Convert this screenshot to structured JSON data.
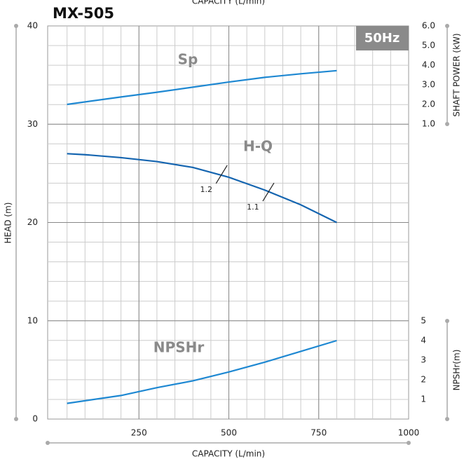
{
  "chart_data": {
    "type": "pump-curve",
    "title": "MX-505",
    "badge": "50Hz",
    "x_label_top": "CAPACITY (L/min)",
    "x_label": "CAPACITY (L/min)",
    "y_label": "HEAD (m)",
    "y2_label": "SHAFT POWER (kW)",
    "y3_label": "NPSHr(m)",
    "xlim": [
      0,
      1000
    ],
    "xticks": [
      250,
      500,
      750,
      1000
    ],
    "ylim": [
      0,
      40
    ],
    "yticks": [
      0,
      10,
      20,
      30,
      40
    ],
    "y2lim": [
      0,
      6
    ],
    "y2ticks": [
      {
        "value": 1,
        "label": "1.0"
      },
      {
        "value": 2,
        "label": "2.0"
      },
      {
        "value": 3,
        "label": "3.0"
      },
      {
        "value": 4,
        "label": "4.0"
      },
      {
        "value": 5,
        "label": "5.0"
      },
      {
        "value": 6,
        "label": "6.0"
      }
    ],
    "y3lim": [
      0,
      5
    ],
    "y3ticks": [
      1,
      2,
      3,
      4,
      5
    ],
    "grid": true,
    "x_minor_step": 50,
    "y_minor_step": 2,
    "series": [
      {
        "name": "H-Q",
        "color": "#1565b0",
        "axis": "y",
        "x": [
          50,
          100,
          200,
          300,
          400,
          500,
          600,
          700,
          800
        ],
        "values": [
          27.0,
          26.9,
          26.6,
          26.2,
          25.6,
          24.6,
          23.3,
          21.8,
          20.0
        ]
      },
      {
        "name": "Sp",
        "color": "#1e88d2",
        "axis": "y2",
        "x": [
          50,
          200,
          300,
          400,
          500,
          600,
          700,
          800
        ],
        "values": [
          2.0,
          2.38,
          2.62,
          2.88,
          3.14,
          3.38,
          3.56,
          3.72
        ]
      },
      {
        "name": "NPSHr",
        "color": "#1e88d2",
        "axis": "y3",
        "x": [
          50,
          200,
          300,
          400,
          500,
          600,
          700,
          800
        ],
        "values": [
          0.8,
          1.2,
          1.6,
          1.95,
          2.4,
          2.9,
          3.45,
          4.0
        ]
      }
    ],
    "annotations": [
      {
        "label": "1.2",
        "x": 480,
        "y": 24.9
      },
      {
        "label": "1.1",
        "x": 610,
        "y": 23.1
      }
    ]
  }
}
